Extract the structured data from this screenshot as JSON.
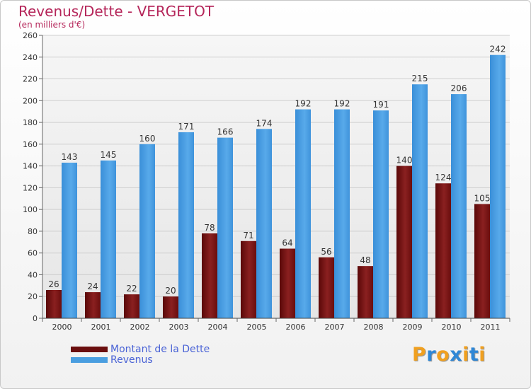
{
  "title": "Revenus/Dette - VERGETOT",
  "subtitle": "(en milliers d'€)",
  "brand": {
    "letters": [
      "P",
      "r",
      "o",
      "x",
      "i",
      "t",
      "i"
    ],
    "colors": [
      "#f0a020",
      "#2f87d6",
      "#f0a020",
      "#2f87d6",
      "#f0a020",
      "#2f87d6",
      "#f0a020"
    ]
  },
  "colors": {
    "dette": "#7a1414",
    "revenus": "#4a9ee0",
    "title": "#b5265a",
    "legend_text": "#4a63d6"
  },
  "chart_data": {
    "type": "bar",
    "title": "Revenus/Dette - VERGETOT",
    "ylabel": "(en milliers d'€)",
    "categories": [
      "2000",
      "2001",
      "2002",
      "2003",
      "2004",
      "2005",
      "2006",
      "2007",
      "2008",
      "2009",
      "2010",
      "2011"
    ],
    "series": [
      {
        "name": "Montant de la Dette",
        "values": [
          26,
          24,
          22,
          20,
          78,
          71,
          64,
          56,
          48,
          140,
          124,
          105
        ]
      },
      {
        "name": "Revenus",
        "values": [
          143,
          145,
          160,
          171,
          166,
          174,
          192,
          192,
          191,
          215,
          206,
          242
        ]
      }
    ],
    "ylim": [
      0,
      260
    ],
    "yticks": [
      0,
      20,
      40,
      60,
      80,
      100,
      120,
      140,
      160,
      180,
      200,
      220,
      240,
      260
    ],
    "grid": true,
    "legend_position": "bottom-left"
  }
}
